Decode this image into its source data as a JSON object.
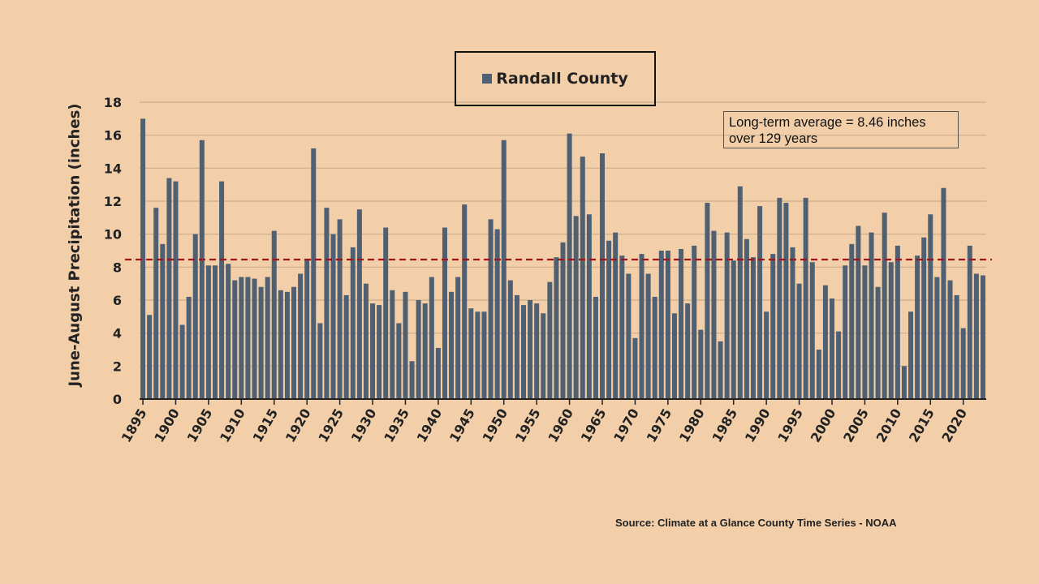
{
  "chart_data": {
    "type": "bar",
    "title": "",
    "legend": {
      "entries": [
        "Randall County"
      ],
      "placement": "top-center"
    },
    "ylabel": "June-August Precipitation (inches)",
    "xlabel": "",
    "ylim": [
      0,
      18
    ],
    "yticks": [
      0,
      2,
      4,
      6,
      8,
      10,
      12,
      14,
      16,
      18
    ],
    "xticks": [
      1895,
      1900,
      1905,
      1910,
      1915,
      1920,
      1925,
      1930,
      1935,
      1940,
      1945,
      1950,
      1955,
      1960,
      1965,
      1970,
      1975,
      1980,
      1985,
      1990,
      1995,
      2000,
      2005,
      2010,
      2015,
      2020
    ],
    "grid": "horizontal",
    "bar_color": "#4f6072",
    "average_line": {
      "value": 8.46,
      "color": "#a0141e",
      "style": "dashed"
    },
    "annotation": [
      "Long-term average = 8.46 inches",
      "over 129 years"
    ],
    "source": "Source: Climate at a Glance County Time Series - NOAA",
    "x_start": 1895,
    "series": [
      {
        "name": "Randall County",
        "values": [
          17.0,
          5.1,
          11.6,
          9.4,
          13.4,
          13.2,
          4.5,
          6.2,
          10.0,
          15.7,
          8.1,
          8.1,
          13.2,
          8.2,
          7.2,
          7.4,
          7.4,
          7.3,
          6.8,
          7.4,
          10.2,
          6.6,
          6.5,
          6.8,
          7.6,
          8.5,
          15.2,
          4.6,
          11.6,
          10.0,
          10.9,
          6.3,
          9.2,
          11.5,
          7.0,
          5.8,
          5.7,
          10.4,
          6.6,
          4.6,
          6.5,
          2.3,
          6.0,
          5.8,
          7.4,
          3.1,
          10.4,
          6.5,
          7.4,
          11.8,
          5.5,
          5.3,
          5.3,
          10.9,
          10.3,
          15.7,
          7.2,
          6.3,
          5.7,
          6.0,
          5.8,
          5.2,
          7.1,
          8.6,
          9.5,
          16.1,
          11.1,
          14.7,
          11.2,
          6.2,
          14.9,
          9.6,
          10.1,
          8.7,
          7.6,
          3.7,
          8.8,
          7.6,
          6.2,
          9.0,
          9.0,
          5.2,
          9.1,
          5.8,
          9.3,
          4.2,
          11.9,
          10.2,
          3.5,
          10.1,
          8.4,
          12.9,
          9.7,
          8.6,
          11.7,
          5.3,
          8.8,
          12.2,
          11.9,
          9.2,
          7.0,
          12.2,
          8.3,
          3.0,
          6.9,
          6.1,
          4.1,
          8.1,
          9.4,
          10.5,
          8.1,
          10.1,
          6.8,
          11.3,
          8.3,
          9.3,
          2.0,
          5.3,
          8.7,
          9.8,
          11.2,
          7.4,
          12.8,
          7.2,
          6.3,
          4.3,
          9.3,
          7.6,
          7.5
        ]
      }
    ]
  }
}
